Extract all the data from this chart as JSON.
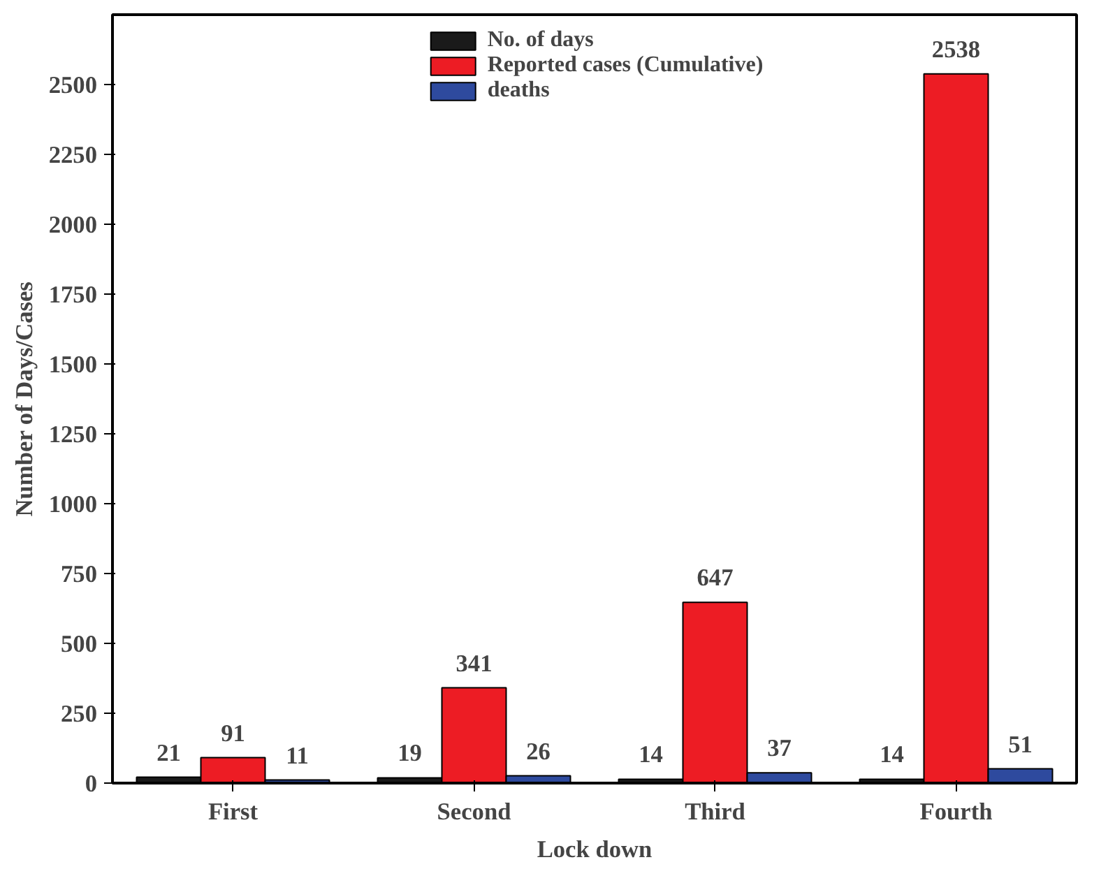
{
  "chart_data": {
    "type": "bar",
    "xlabel": "Lock down",
    "ylabel": "Number of Days/Cases",
    "categories": [
      "First",
      "Second",
      "Third",
      "Fourth"
    ],
    "series": [
      {
        "name": "No. of days",
        "color": "#1a1a1a",
        "values": [
          21,
          19,
          14,
          14
        ]
      },
      {
        "name": "Reported cases (Cumulative)",
        "color": "#ed1c24",
        "values": [
          91,
          341,
          647,
          2538
        ]
      },
      {
        "name": "deaths",
        "color": "#2e4a9e",
        "values": [
          11,
          26,
          37,
          51
        ]
      }
    ],
    "ylim": [
      0,
      2750
    ],
    "yticks": [
      0,
      250,
      500,
      750,
      1000,
      1250,
      1500,
      1750,
      2000,
      2250,
      2500
    ],
    "data_labels": true,
    "legend": "top",
    "grid": false
  }
}
